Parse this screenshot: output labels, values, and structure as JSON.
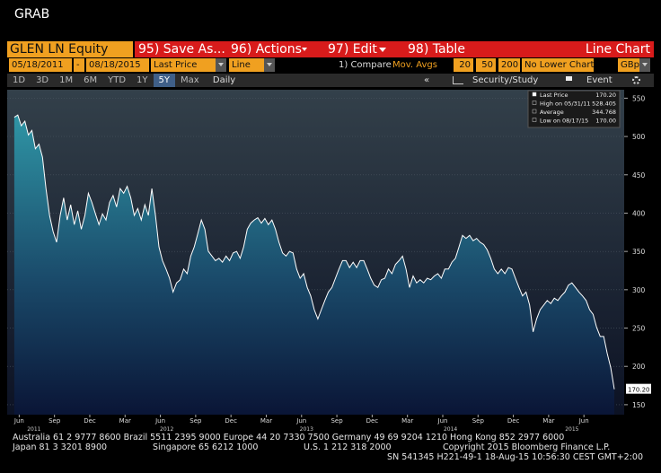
{
  "header": {
    "title": "GRAB"
  },
  "toolbar": {
    "ticker": "GLEN LN Equity",
    "menu": [
      "95) Save As...",
      "96) Actions",
      "97) Edit",
      "98) Table"
    ],
    "view": "Line Chart"
  },
  "settings": {
    "start": "05/18/2011",
    "separator": "-",
    "end": "08/18/2015",
    "field": "Last Price",
    "style": "Line",
    "compare": "1) Compare",
    "mov_avgs": "Mov. Avgs",
    "ma": [
      "20",
      "50",
      "200"
    ],
    "lower": "No Lower Chart",
    "currency": "GBp"
  },
  "ranges": {
    "buttons": [
      "1D",
      "3D",
      "1M",
      "6M",
      "YTD",
      "1Y",
      "5Y",
      "Max"
    ],
    "selected": "5Y",
    "period": "Daily",
    "collapse": "«",
    "study": "Security/Study",
    "event": "Event"
  },
  "chart_data": {
    "type": "area",
    "stats": [
      {
        "label": "Last Price",
        "value": "170.20"
      },
      {
        "label": "High on 05/31/11",
        "value": "528.405"
      },
      {
        "label": "Average",
        "value": "344.768"
      },
      {
        "label": "Low on 08/17/15",
        "value": "170.00"
      }
    ],
    "last_label": "170.20",
    "xlim": [
      2011.33,
      2015.7
    ],
    "ylim": [
      137,
      561
    ],
    "yticks": [
      150,
      200,
      250,
      300,
      350,
      400,
      450,
      500,
      550
    ],
    "grid": true,
    "xticks": [
      {
        "value": 2011.415,
        "label": "Jun"
      },
      {
        "value": 2011.665,
        "label": "Sep"
      },
      {
        "value": 2011.915,
        "label": "Dec"
      },
      {
        "value": 2012.165,
        "label": "Mar"
      },
      {
        "value": 2012.415,
        "label": "Jun"
      },
      {
        "value": 2012.665,
        "label": "Sep"
      },
      {
        "value": 2012.915,
        "label": "Dec"
      },
      {
        "value": 2013.165,
        "label": "Mar"
      },
      {
        "value": 2013.415,
        "label": "Jun"
      },
      {
        "value": 2013.665,
        "label": "Sep"
      },
      {
        "value": 2013.915,
        "label": "Dec"
      },
      {
        "value": 2014.165,
        "label": "Mar"
      },
      {
        "value": 2014.415,
        "label": "Jun"
      },
      {
        "value": 2014.665,
        "label": "Sep"
      },
      {
        "value": 2014.915,
        "label": "Dec"
      },
      {
        "value": 2015.165,
        "label": "Mar"
      },
      {
        "value": 2015.415,
        "label": "Jun"
      }
    ],
    "year_labels": [
      {
        "value": 2011.52,
        "label": "2011"
      },
      {
        "value": 2012.46,
        "label": "2012"
      },
      {
        "value": 2013.45,
        "label": "2013"
      },
      {
        "value": 2014.47,
        "label": "2014"
      },
      {
        "value": 2015.33,
        "label": "2015"
      }
    ],
    "x": [
      2011.38,
      2011.405,
      2011.43,
      2011.455,
      2011.48,
      2011.505,
      2011.53,
      2011.555,
      2011.58,
      2011.605,
      2011.63,
      2011.655,
      2011.68,
      2011.705,
      2011.73,
      2011.755,
      2011.78,
      2011.805,
      2011.83,
      2011.855,
      2011.88,
      2011.905,
      2011.93,
      2011.955,
      2011.98,
      2012.005,
      2012.03,
      2012.055,
      2012.08,
      2012.105,
      2012.13,
      2012.155,
      2012.18,
      2012.205,
      2012.23,
      2012.255,
      2012.28,
      2012.305,
      2012.33,
      2012.355,
      2012.38,
      2012.405,
      2012.43,
      2012.455,
      2012.48,
      2012.505,
      2012.53,
      2012.555,
      2012.58,
      2012.605,
      2012.63,
      2012.655,
      2012.68,
      2012.705,
      2012.73,
      2012.755,
      2012.78,
      2012.805,
      2012.83,
      2012.855,
      2012.88,
      2012.905,
      2012.93,
      2012.955,
      2012.98,
      2013.005,
      2013.03,
      2013.055,
      2013.08,
      2013.105,
      2013.13,
      2013.155,
      2013.18,
      2013.205,
      2013.23,
      2013.255,
      2013.28,
      2013.305,
      2013.33,
      2013.355,
      2013.38,
      2013.405,
      2013.43,
      2013.455,
      2013.48,
      2013.505,
      2013.53,
      2013.555,
      2013.58,
      2013.605,
      2013.63,
      2013.655,
      2013.68,
      2013.705,
      2013.73,
      2013.755,
      2013.78,
      2013.805,
      2013.83,
      2013.855,
      2013.88,
      2013.905,
      2013.93,
      2013.955,
      2013.98,
      2014.005,
      2014.03,
      2014.055,
      2014.08,
      2014.105,
      2014.13,
      2014.155,
      2014.18,
      2014.205,
      2014.23,
      2014.255,
      2014.28,
      2014.305,
      2014.33,
      2014.355,
      2014.38,
      2014.405,
      2014.43,
      2014.455,
      2014.48,
      2014.505,
      2014.53,
      2014.555,
      2014.58,
      2014.605,
      2014.63,
      2014.655,
      2014.68,
      2014.705,
      2014.73,
      2014.755,
      2014.78,
      2014.805,
      2014.83,
      2014.855,
      2014.88,
      2014.905,
      2014.93,
      2014.955,
      2014.98,
      2015.005,
      2015.03,
      2015.055,
      2015.08,
      2015.105,
      2015.13,
      2015.155,
      2015.18,
      2015.205,
      2015.23,
      2015.255,
      2015.28,
      2015.305,
      2015.33,
      2015.355,
      2015.38,
      2015.405,
      2015.43,
      2015.455,
      2015.48,
      2015.505,
      2015.53,
      2015.555,
      2015.58,
      2015.605,
      2015.63
    ],
    "series": [
      {
        "color": "#ffffff",
        "fill": "#2f95a5",
        "values": [
          525,
          528,
          514,
          520,
          502,
          508,
          484,
          490,
          473,
          432,
          397,
          376,
          362,
          397,
          420,
          391,
          411,
          385,
          403,
          379,
          397,
          426,
          414,
          399,
          385,
          399,
          391,
          414,
          423,
          408,
          432,
          426,
          435,
          420,
          397,
          406,
          391,
          411,
          397,
          432,
          397,
          356,
          338,
          327,
          315,
          297,
          309,
          313,
          327,
          321,
          344,
          356,
          373,
          391,
          379,
          350,
          344,
          338,
          341,
          336,
          344,
          338,
          348,
          350,
          341,
          356,
          379,
          387,
          391,
          394,
          387,
          393,
          385,
          391,
          379,
          362,
          348,
          344,
          350,
          348,
          327,
          315,
          321,
          303,
          292,
          274,
          262,
          274,
          286,
          297,
          303,
          315,
          327,
          338,
          338,
          329,
          336,
          329,
          338,
          338,
          327,
          315,
          306,
          303,
          313,
          315,
          327,
          321,
          333,
          338,
          344,
          327,
          303,
          318,
          309,
          313,
          309,
          315,
          313,
          318,
          321,
          315,
          327,
          327,
          336,
          341,
          356,
          371,
          367,
          371,
          364,
          367,
          362,
          359,
          352,
          341,
          327,
          321,
          327,
          321,
          329,
          327,
          315,
          303,
          292,
          297,
          280,
          245,
          262,
          274,
          280,
          286,
          282,
          289,
          286,
          292,
          297,
          306,
          309,
          303,
          297,
          292,
          286,
          274,
          268,
          251,
          239,
          239,
          217,
          198,
          170.2
        ]
      }
    ]
  },
  "footer": {
    "line1": "Australia 61 2 9777 8600 Brazil 5511 2395 9000 Europe 44 20 7330 7500 Germany 49 69 9204 1210 Hong Kong 852 2977 6000",
    "japan": "Japan 81 3 3201 8900",
    "singapore": "Singapore 65 6212 1000",
    "us": "U.S. 1 212 318 2000",
    "copyright": "Copyright 2015 Bloomberg Finance L.P.",
    "sn": "SN 541345 H221-49-1 18-Aug-15 10:56:30 CEST  GMT+2:00"
  }
}
